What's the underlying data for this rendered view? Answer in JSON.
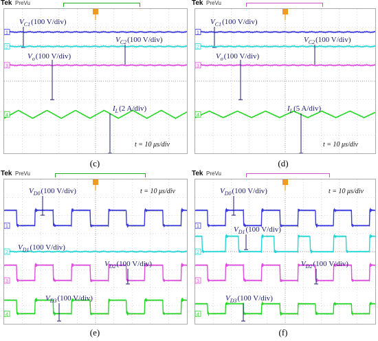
{
  "header": {
    "brand": "Tek",
    "mode": "PreVu"
  },
  "captions": [
    "(c)",
    "(d)",
    "(e)",
    "(f)"
  ],
  "channel_markers": [
    "1",
    "2",
    "3",
    "4"
  ],
  "colors": {
    "ch1": "#3a3adf",
    "ch2": "#22d6d6",
    "ch3": "#e04ce0",
    "ch4": "#26d626",
    "annotation": "#1a1a6e",
    "trigger_box_c": "#22aa22",
    "trigger_box_d": "#cc55cc",
    "trigger_marker": "#f29a1e"
  },
  "chart_data": [
    {
      "type": "line",
      "panel": "(c)",
      "time_scale": "t = 10 μs/div",
      "series": [
        {
          "name": "VC1",
          "label_main": "V",
          "label_sub": "C1",
          "label_scale": "(100 V/div)",
          "shape": "dc",
          "channel": 1
        },
        {
          "name": "VC2",
          "label_main": "V",
          "label_sub": "C2",
          "label_scale": "(100 V/div)",
          "shape": "dc",
          "channel": 2
        },
        {
          "name": "Vo",
          "label_main": "V",
          "label_sub": "o",
          "label_scale": "(100 V/div)",
          "shape": "dc",
          "channel": 3
        },
        {
          "name": "IL",
          "label_main": "I",
          "label_sub": "L",
          "label_scale": "(2 A/div)",
          "shape": "triangle",
          "periods": 6.4,
          "amplitude_div": 0.22,
          "channel": 4
        }
      ]
    },
    {
      "type": "line",
      "panel": "(d)",
      "time_scale": "t = 10 μs/div",
      "series": [
        {
          "name": "VC1",
          "label_main": "V",
          "label_sub": "C1",
          "label_scale": "(100 V/div)",
          "shape": "dc",
          "channel": 1
        },
        {
          "name": "VC2",
          "label_main": "V",
          "label_sub": "C2",
          "label_scale": "(100 V/div)",
          "shape": "dc",
          "channel": 2
        },
        {
          "name": "Vo",
          "label_main": "V",
          "label_sub": "o",
          "label_scale": "(100 V/div)",
          "shape": "dc",
          "channel": 3
        },
        {
          "name": "IL",
          "label_main": "I",
          "label_sub": "L",
          "label_scale": "(5 A/div)",
          "shape": "triangle",
          "periods": 6.4,
          "amplitude_div": 0.18,
          "channel": 4
        }
      ]
    },
    {
      "type": "line",
      "panel": "(e)",
      "time_scale": "t = 10 μs/div",
      "series": [
        {
          "name": "VD0",
          "label_main": "V",
          "label_sub": "D0",
          "label_scale": "(100 V/div)",
          "shape": "square",
          "periods": 5,
          "duty": 0.5,
          "amplitude_div": 0.85,
          "channel": 1
        },
        {
          "name": "VD1",
          "label_main": "V",
          "label_sub": "D1",
          "label_scale": "(100 V/div)",
          "shape": "dc",
          "channel": 2
        },
        {
          "name": "VD2",
          "label_main": "V",
          "label_sub": "D2",
          "label_scale": "(100 V/div)",
          "shape": "square",
          "periods": 5,
          "duty": 0.5,
          "amplitude_div": 0.85,
          "channel": 3
        },
        {
          "name": "VD3",
          "label_main": "V",
          "label_sub": "D3",
          "label_scale": "(100 V/div)",
          "shape": "square",
          "periods": 5,
          "duty": 0.5,
          "amplitude_div": 0.75,
          "channel": 4
        }
      ]
    },
    {
      "type": "line",
      "panel": "(f)",
      "time_scale": "t = 10 μs/div",
      "series": [
        {
          "name": "VD0",
          "label_main": "V",
          "label_sub": "D0",
          "label_scale": "(100 V/div)",
          "shape": "square",
          "periods": 5,
          "duty": 0.5,
          "amplitude_div": 0.85,
          "channel": 1
        },
        {
          "name": "VD1",
          "label_main": "V",
          "label_sub": "D1",
          "label_scale": "(100 V/div)",
          "shape": "square",
          "periods": 5,
          "duty": 0.35,
          "amplitude_div": 0.85,
          "channel": 2
        },
        {
          "name": "VD2",
          "label_main": "V",
          "label_sub": "D2",
          "label_scale": "(100 V/div)",
          "shape": "square",
          "periods": 5,
          "duty": 0.5,
          "amplitude_div": 0.85,
          "channel": 3
        },
        {
          "name": "VD3",
          "label_main": "V",
          "label_sub": "D3",
          "label_scale": "(100 V/div)",
          "shape": "square",
          "periods": 5,
          "duty": 0.5,
          "amplitude_div": 0.55,
          "channel": 4
        }
      ]
    }
  ]
}
